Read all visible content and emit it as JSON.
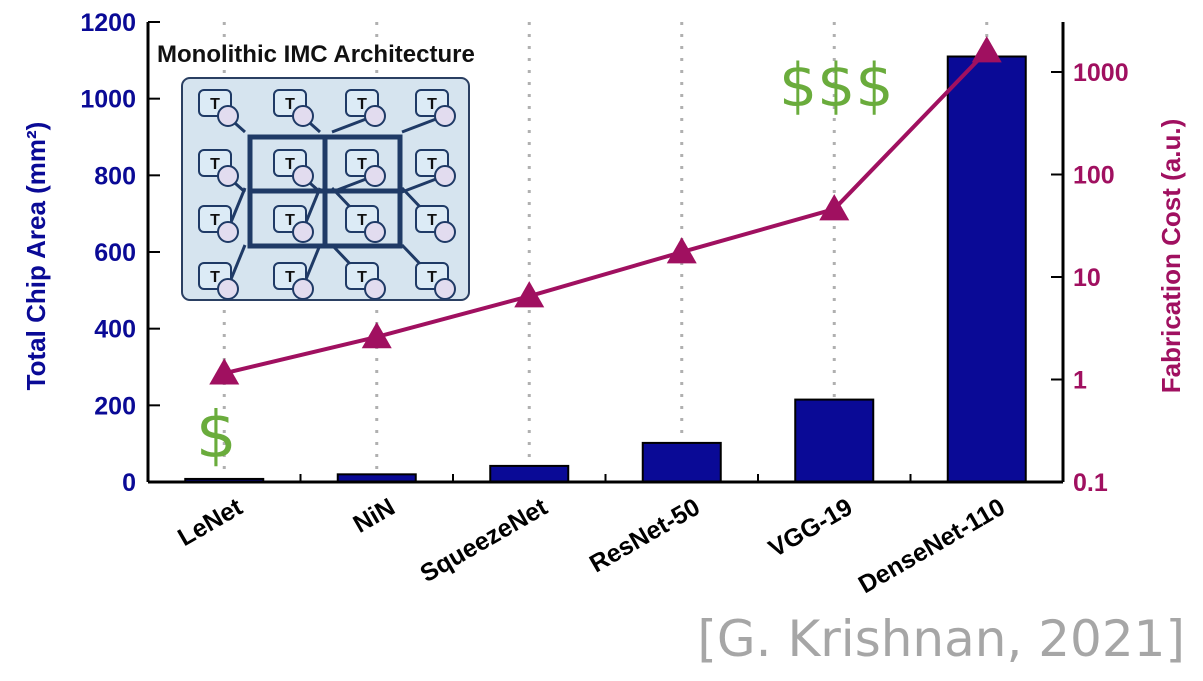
{
  "chart_data": {
    "type": "bar",
    "categories": [
      "LeNet",
      "NiN",
      "SqueezeNet",
      "ResNet-50",
      "VGG-19",
      "DenseNet-110"
    ],
    "series": [
      {
        "values": [
          8,
          20,
          42,
          102,
          215,
          1110
        ],
        "color": "#0a0a96",
        "axis": "left"
      },
      {
        "type": "line",
        "marker": "triangle",
        "values": [
          1.15,
          2.6,
          6.5,
          17.5,
          46,
          1600
        ],
        "color": "#a01060",
        "axis": "right"
      }
    ],
    "ylabel": "Total Chip Area (mm²)",
    "ylabel_right": "Fabrication Cost (a.u.)",
    "ylim": [
      0,
      1200
    ],
    "yticks": [
      "0",
      "200",
      "400",
      "600",
      "800",
      "1000",
      "1200"
    ],
    "ylim_right": [
      0.1,
      2000
    ],
    "y_right_scale": "log",
    "yticks_right": [
      "0.1",
      "1",
      "10",
      "100",
      "1000"
    ],
    "grid": "vertical dotted",
    "annotations": [
      {
        "text": "$",
        "at": "LeNet",
        "color": "#6aac3c"
      },
      {
        "text": "$$$",
        "at": "VGG-19",
        "color": "#6aac3c"
      }
    ],
    "inset": {
      "title": "Monolithic IMC Architecture",
      "tile_label": "T"
    }
  },
  "citation": "[G. Krishnan, 2021]"
}
